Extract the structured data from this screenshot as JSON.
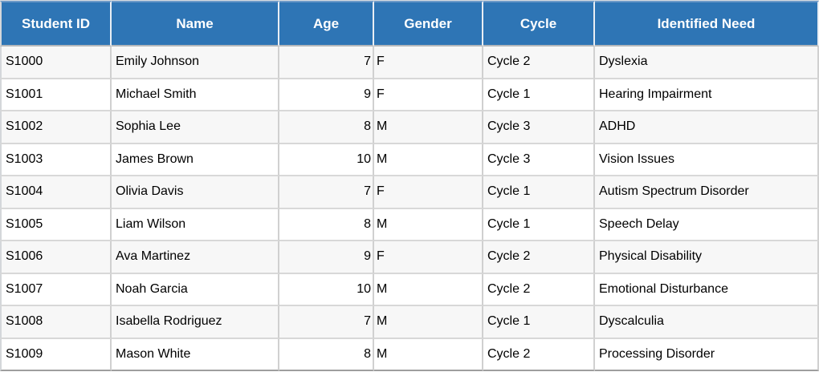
{
  "table": {
    "columns": [
      {
        "key": "student-id",
        "label": "Student ID"
      },
      {
        "key": "name",
        "label": "Name"
      },
      {
        "key": "age",
        "label": "Age"
      },
      {
        "key": "gender",
        "label": "Gender"
      },
      {
        "key": "cycle",
        "label": "Cycle"
      },
      {
        "key": "identified-need",
        "label": "Identified Need"
      }
    ],
    "rows": [
      [
        "S1000",
        "Emily Johnson",
        "7",
        "F",
        "Cycle 2",
        "Dyslexia"
      ],
      [
        "S1001",
        "Michael Smith",
        "9",
        "F",
        "Cycle 1",
        "Hearing Impairment"
      ],
      [
        "S1002",
        "Sophia Lee",
        "8",
        "M",
        "Cycle 3",
        "ADHD"
      ],
      [
        "S1003",
        "James Brown",
        "10",
        "M",
        "Cycle 3",
        "Vision Issues"
      ],
      [
        "S1004",
        "Olivia Davis",
        "7",
        "F",
        "Cycle 1",
        "Autism Spectrum Disorder"
      ],
      [
        "S1005",
        "Liam Wilson",
        "8",
        "M",
        "Cycle 1",
        "Speech Delay"
      ],
      [
        "S1006",
        "Ava Martinez",
        "9",
        "F",
        "Cycle 2",
        "Physical Disability"
      ],
      [
        "S1007",
        "Noah Garcia",
        "10",
        "M",
        "Cycle 2",
        "Emotional Disturbance"
      ],
      [
        "S1008",
        "Isabella Rodriguez",
        "7",
        "M",
        "Cycle 1",
        "Dyscalculia"
      ],
      [
        "S1009",
        "Mason White",
        "8",
        "M",
        "Cycle 2",
        "Processing Disorder"
      ]
    ]
  },
  "colors": {
    "header_bg": "#2E75B5",
    "header_top_highlight": "#6B99C8",
    "header_separator": "#E9EEF4",
    "header_bottom_line": "#B5B8BB",
    "header_text": "#FFFFFF",
    "row_odd_bg": "#F7F7F7",
    "row_even_bg": "#FFFFFF",
    "gridline": "#D0D0D0",
    "outer_border": "#D4D7DA",
    "bottom_border": "#9E9E9E",
    "body_text": "#000000"
  }
}
